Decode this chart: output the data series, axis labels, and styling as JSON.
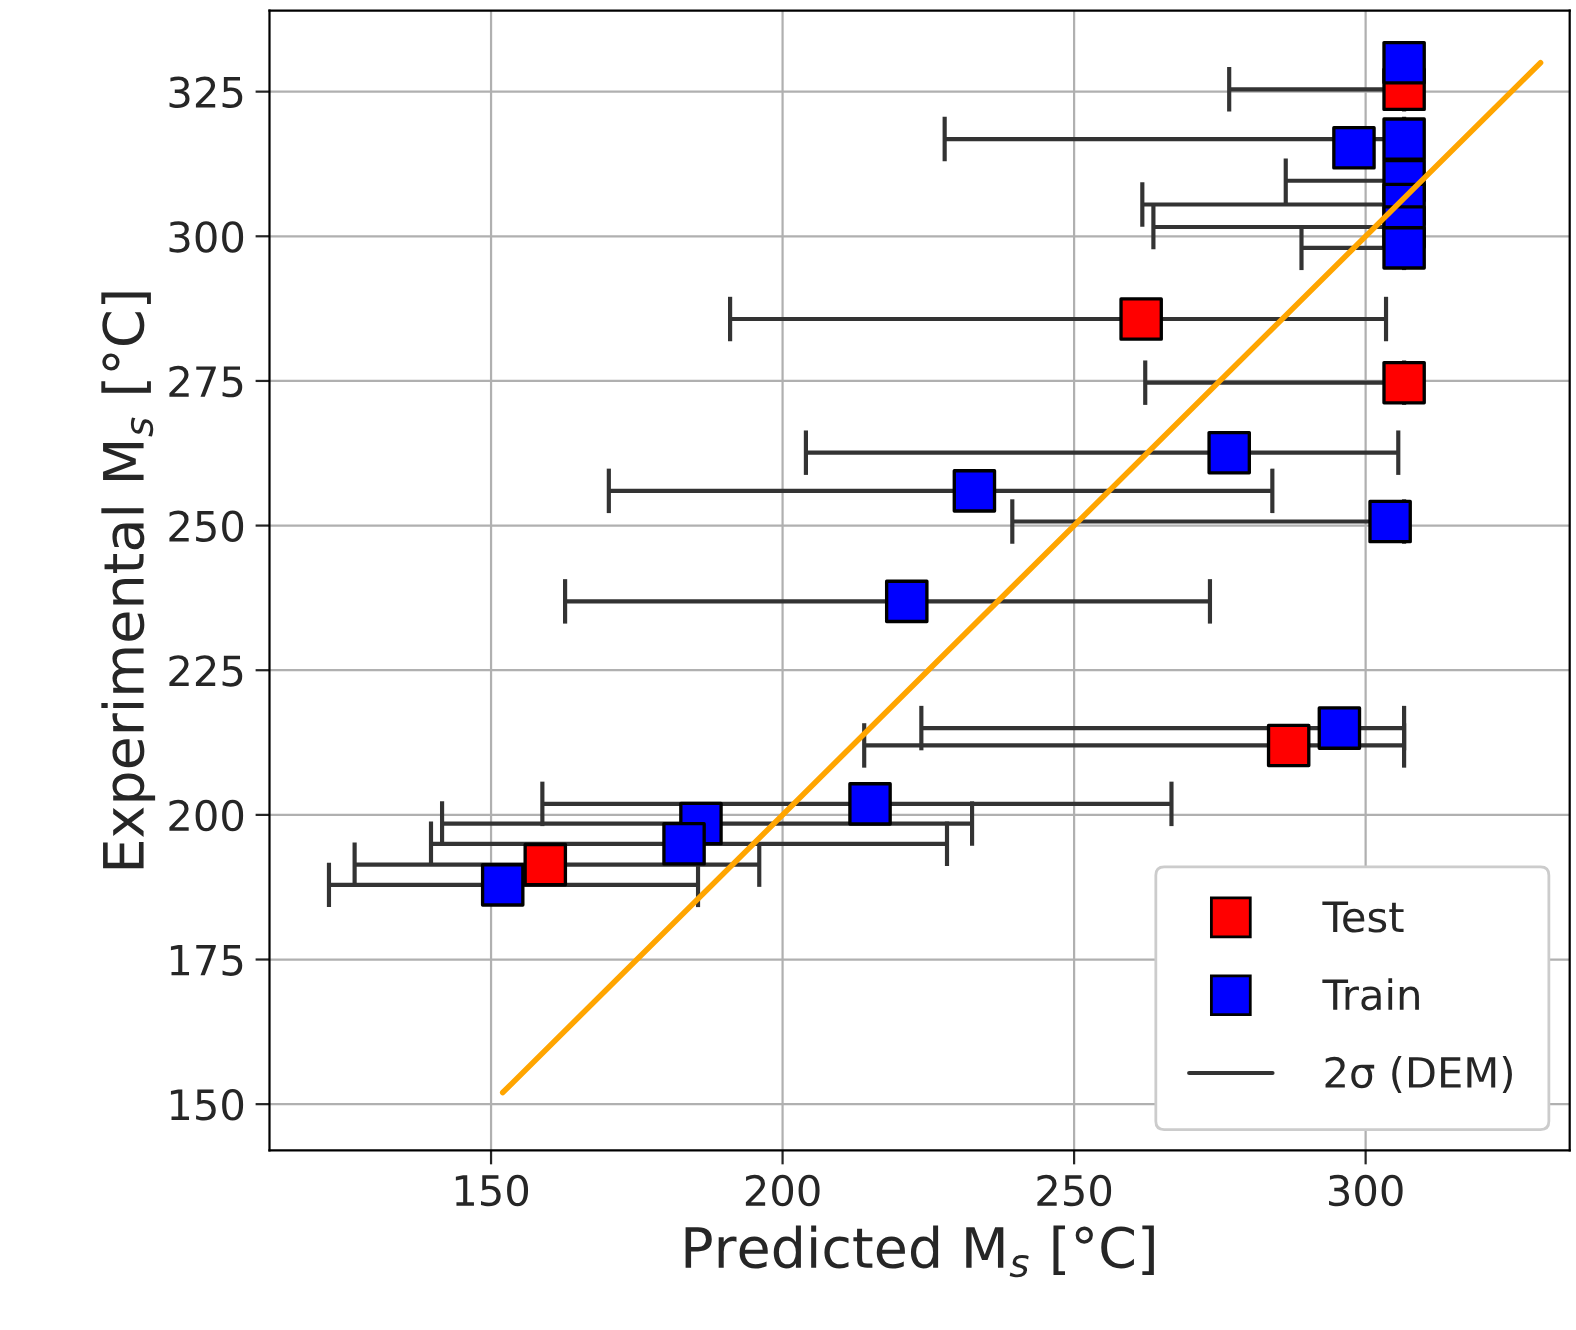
{
  "chart_data": {
    "type": "scatter",
    "xlabel": "Predicted M$_{s}$ [°C]",
    "ylabel": "Experimental M$_{s}$ [°C]",
    "xlim": [
      112,
      335
    ],
    "ylim": [
      142,
      339
    ],
    "xticks": [
      150,
      200,
      250,
      300
    ],
    "yticks": [
      150,
      175,
      200,
      225,
      250,
      275,
      300,
      325
    ],
    "grid": true,
    "legend": "bottom right",
    "marker": "square",
    "annotations": [
      "2σ (DEM)"
    ],
    "series": [
      {
        "name": "Test",
        "color": "#ff0000",
        "x": [
          306.6,
          261.5,
          306.6,
          286.8,
          159.3
        ],
        "values": [
          325.4,
          285.7,
          274.7,
          212,
          191.4
        ],
        "xerrors": [
          [
            276.6,
            306.6
          ],
          [
            191,
            303.5
          ],
          [
            262.2,
            306.6
          ],
          [
            214,
            306.6
          ],
          [
            126.6,
            196
          ]
        ]
      },
      {
        "name": "Train",
        "color": "#0000ff",
        "x": [
          306.6,
          298,
          306.6,
          306.6,
          306.6,
          306.6,
          306.6,
          276.6,
          232.9,
          304.2,
          221.3,
          295.5,
          215,
          186,
          183.1,
          152
        ],
        "values": [
          330,
          315.3,
          316.8,
          309.6,
          305.5,
          301.6,
          298,
          262.6,
          256,
          250.7,
          236.9,
          215,
          201.9,
          198.5,
          195,
          187.9
        ],
        "xerrors": [
          null,
          null,
          [
            227.8,
            306.6
          ],
          [
            286.3,
            306.6
          ],
          [
            261.7,
            306.6
          ],
          [
            263.6,
            306.6
          ],
          [
            289,
            306.6
          ],
          [
            204,
            305.6
          ],
          [
            170.2,
            284
          ],
          [
            239.4,
            306.6
          ],
          [
            162.7,
            273.3
          ],
          [
            223.8,
            306.6
          ],
          [
            158.8,
            266.7
          ],
          [
            141.6,
            232.5
          ],
          [
            139.7,
            228.2
          ],
          [
            122.2,
            185.5
          ]
        ]
      },
      {
        "type": "line",
        "marker": "none",
        "color": "#ffa500",
        "x": [
          152,
          330
        ],
        "values": [
          152,
          330
        ]
      }
    ]
  }
}
